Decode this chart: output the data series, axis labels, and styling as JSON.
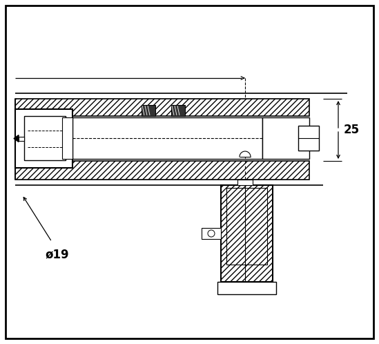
{
  "bg_color": "#ffffff",
  "line_color": "#000000",
  "annotation_25": "25",
  "annotation_dia": "ø19",
  "fig_width": 5.49,
  "fig_height": 4.98,
  "dpi": 100
}
